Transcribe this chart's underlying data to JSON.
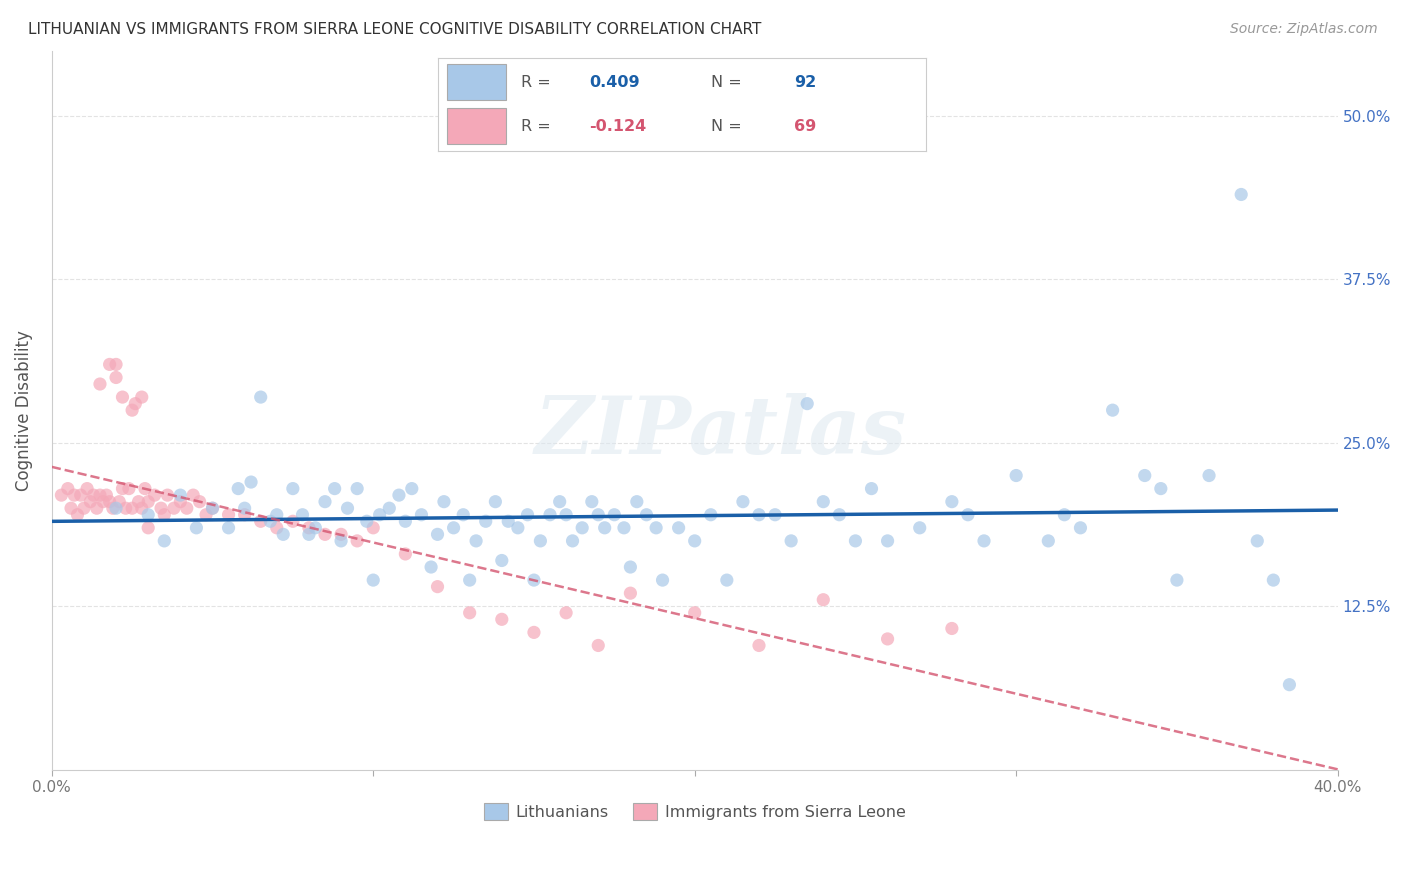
{
  "title": "LITHUANIAN VS IMMIGRANTS FROM SIERRA LEONE COGNITIVE DISABILITY CORRELATION CHART",
  "source": "Source: ZipAtlas.com",
  "ylabel": "Cognitive Disability",
  "xlim": [
    0.0,
    0.4
  ],
  "ylim": [
    0.0,
    0.55
  ],
  "yticks": [
    0.125,
    0.25,
    0.375,
    0.5
  ],
  "ytick_labels": [
    "12.5%",
    "25.0%",
    "37.5%",
    "50.0%"
  ],
  "xticks": [
    0.0,
    0.1,
    0.2,
    0.3,
    0.4
  ],
  "xtick_labels": [
    "0.0%",
    "",
    "",
    "",
    "40.0%"
  ],
  "background_color": "#ffffff",
  "grid_color": "#e0e0e0",
  "blue_color": "#a8c8e8",
  "pink_color": "#f4a8b8",
  "blue_line_color": "#1a5fa8",
  "pink_line_color": "#d45570",
  "tick_label_color": "#4472c4",
  "watermark": "ZIPatlas",
  "blue_scatter_x": [
    0.02,
    0.03,
    0.035,
    0.04,
    0.045,
    0.05,
    0.055,
    0.058,
    0.06,
    0.062,
    0.065,
    0.068,
    0.07,
    0.072,
    0.075,
    0.078,
    0.08,
    0.082,
    0.085,
    0.088,
    0.09,
    0.092,
    0.095,
    0.098,
    0.1,
    0.102,
    0.105,
    0.108,
    0.11,
    0.112,
    0.115,
    0.118,
    0.12,
    0.122,
    0.125,
    0.128,
    0.13,
    0.132,
    0.135,
    0.138,
    0.14,
    0.142,
    0.145,
    0.148,
    0.15,
    0.152,
    0.155,
    0.158,
    0.16,
    0.162,
    0.165,
    0.168,
    0.17,
    0.172,
    0.175,
    0.178,
    0.18,
    0.182,
    0.185,
    0.188,
    0.19,
    0.195,
    0.2,
    0.205,
    0.21,
    0.215,
    0.22,
    0.225,
    0.23,
    0.235,
    0.24,
    0.245,
    0.25,
    0.255,
    0.26,
    0.27,
    0.28,
    0.285,
    0.29,
    0.3,
    0.31,
    0.315,
    0.32,
    0.33,
    0.34,
    0.345,
    0.35,
    0.36,
    0.37,
    0.375,
    0.38,
    0.385
  ],
  "blue_scatter_y": [
    0.2,
    0.195,
    0.175,
    0.21,
    0.185,
    0.2,
    0.185,
    0.215,
    0.2,
    0.22,
    0.285,
    0.19,
    0.195,
    0.18,
    0.215,
    0.195,
    0.18,
    0.185,
    0.205,
    0.215,
    0.175,
    0.2,
    0.215,
    0.19,
    0.145,
    0.195,
    0.2,
    0.21,
    0.19,
    0.215,
    0.195,
    0.155,
    0.18,
    0.205,
    0.185,
    0.195,
    0.145,
    0.175,
    0.19,
    0.205,
    0.16,
    0.19,
    0.185,
    0.195,
    0.145,
    0.175,
    0.195,
    0.205,
    0.195,
    0.175,
    0.185,
    0.205,
    0.195,
    0.185,
    0.195,
    0.185,
    0.155,
    0.205,
    0.195,
    0.185,
    0.145,
    0.185,
    0.175,
    0.195,
    0.145,
    0.205,
    0.195,
    0.195,
    0.175,
    0.28,
    0.205,
    0.195,
    0.175,
    0.215,
    0.175,
    0.185,
    0.205,
    0.195,
    0.175,
    0.225,
    0.175,
    0.195,
    0.185,
    0.275,
    0.225,
    0.215,
    0.145,
    0.225,
    0.44,
    0.175,
    0.145,
    0.065
  ],
  "pink_scatter_x": [
    0.003,
    0.005,
    0.006,
    0.007,
    0.008,
    0.009,
    0.01,
    0.011,
    0.012,
    0.013,
    0.014,
    0.015,
    0.016,
    0.017,
    0.018,
    0.019,
    0.02,
    0.021,
    0.022,
    0.023,
    0.024,
    0.025,
    0.026,
    0.027,
    0.028,
    0.029,
    0.03,
    0.032,
    0.034,
    0.036,
    0.038,
    0.04,
    0.042,
    0.044,
    0.046,
    0.048,
    0.05,
    0.055,
    0.06,
    0.065,
    0.07,
    0.075,
    0.08,
    0.085,
    0.09,
    0.095,
    0.1,
    0.11,
    0.12,
    0.13,
    0.14,
    0.15,
    0.16,
    0.17,
    0.18,
    0.2,
    0.22,
    0.24,
    0.26,
    0.28,
    0.015,
    0.018,
    0.02,
    0.022,
    0.025,
    0.028,
    0.03,
    0.035
  ],
  "pink_scatter_y": [
    0.21,
    0.215,
    0.2,
    0.21,
    0.195,
    0.21,
    0.2,
    0.215,
    0.205,
    0.21,
    0.2,
    0.21,
    0.205,
    0.21,
    0.205,
    0.2,
    0.31,
    0.205,
    0.215,
    0.2,
    0.215,
    0.2,
    0.28,
    0.205,
    0.2,
    0.215,
    0.205,
    0.21,
    0.2,
    0.21,
    0.2,
    0.205,
    0.2,
    0.21,
    0.205,
    0.195,
    0.2,
    0.195,
    0.195,
    0.19,
    0.185,
    0.19,
    0.185,
    0.18,
    0.18,
    0.175,
    0.185,
    0.165,
    0.14,
    0.12,
    0.115,
    0.105,
    0.12,
    0.095,
    0.135,
    0.12,
    0.095,
    0.13,
    0.1,
    0.108,
    0.295,
    0.31,
    0.3,
    0.285,
    0.275,
    0.285,
    0.185,
    0.195
  ]
}
